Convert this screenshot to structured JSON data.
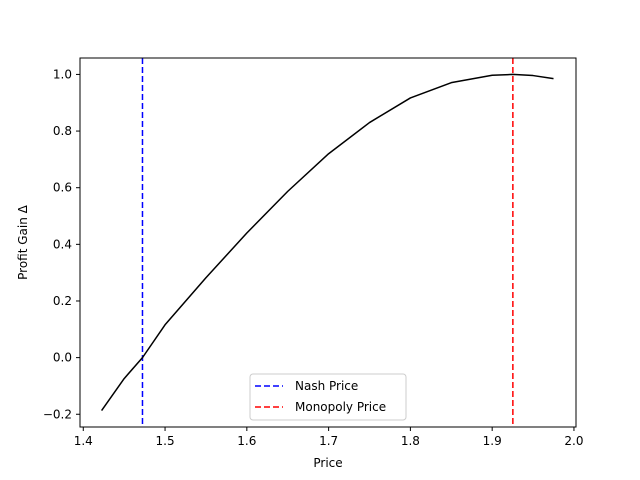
{
  "chart_data": {
    "type": "line",
    "title": "",
    "xlabel": "Price",
    "ylabel": "Profit Gain Δ",
    "xlim": [
      1.396,
      2.0025
    ],
    "ylim": [
      -0.245,
      1.058
    ],
    "xticks": [
      {
        "value": 1.4,
        "label": "1.4"
      },
      {
        "value": 1.5,
        "label": "1.5"
      },
      {
        "value": 1.6,
        "label": "1.6"
      },
      {
        "value": 1.7,
        "label": "1.7"
      },
      {
        "value": 1.8,
        "label": "1.8"
      },
      {
        "value": 1.9,
        "label": "1.9"
      },
      {
        "value": 2.0,
        "label": "2.0"
      }
    ],
    "yticks": [
      {
        "value": -0.2,
        "label": "−0.2"
      },
      {
        "value": 0.0,
        "label": "0.0"
      },
      {
        "value": 0.2,
        "label": "0.2"
      },
      {
        "value": 0.4,
        "label": "0.4"
      },
      {
        "value": 0.6,
        "label": "0.6"
      },
      {
        "value": 0.8,
        "label": "0.8"
      },
      {
        "value": 1.0,
        "label": "1.0"
      }
    ],
    "grid": false,
    "curve": {
      "color": "#000000",
      "x": [
        1.4224,
        1.45,
        1.4724,
        1.5,
        1.55,
        1.6,
        1.65,
        1.7,
        1.75,
        1.8,
        1.85,
        1.9,
        1.925,
        1.95,
        1.975
      ],
      "y": [
        -0.187,
        -0.074,
        0.0,
        0.116,
        0.282,
        0.44,
        0.587,
        0.72,
        0.83,
        0.917,
        0.971,
        0.997,
        1.0,
        0.996,
        0.985
      ]
    },
    "reference_lines": [
      {
        "name": "Nash Price",
        "x": 1.4724,
        "color": "#0000ff",
        "style": "dashed"
      },
      {
        "name": "Monopoly Price",
        "x": 1.9253,
        "color": "#ff0000",
        "style": "dashed"
      }
    ],
    "legend": {
      "placement": "lower-center",
      "entries": [
        {
          "label": "Nash Price",
          "color": "#0000ff",
          "style": "dashed"
        },
        {
          "label": "Monopoly Price",
          "color": "#ff0000",
          "style": "dashed"
        }
      ]
    }
  }
}
